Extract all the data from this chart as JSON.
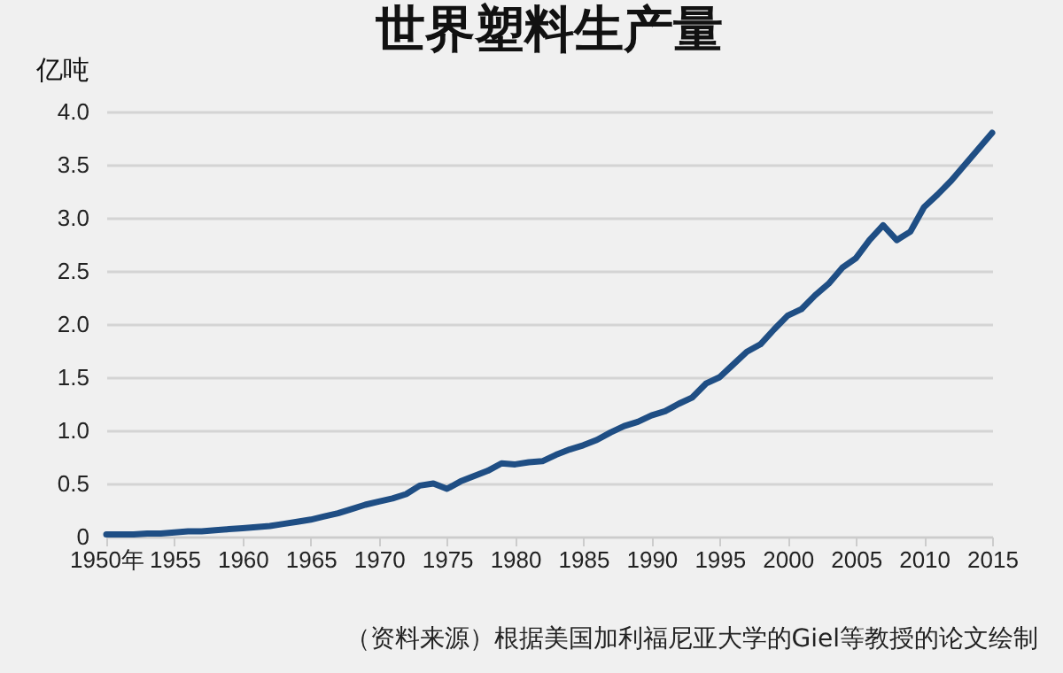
{
  "chart_data": {
    "type": "line",
    "title": "世界塑料生产量",
    "ylabel": "亿吨",
    "annotations": [
      "（资料来源）根据美国加利福尼亚大学的Giel等教授的论文绘制"
    ],
    "x": [
      1950,
      1951,
      1952,
      1953,
      1954,
      1955,
      1956,
      1957,
      1958,
      1959,
      1960,
      1961,
      1962,
      1963,
      1964,
      1965,
      1966,
      1967,
      1968,
      1969,
      1970,
      1971,
      1972,
      1973,
      1974,
      1975,
      1976,
      1977,
      1978,
      1979,
      1980,
      1981,
      1982,
      1983,
      1984,
      1985,
      1986,
      1987,
      1988,
      1989,
      1990,
      1991,
      1992,
      1993,
      1994,
      1995,
      1996,
      1997,
      1998,
      1999,
      2000,
      2001,
      2002,
      2003,
      2004,
      2005,
      2006,
      2007,
      2008,
      2009,
      2010,
      2011,
      2012,
      2013,
      2014,
      2015
    ],
    "series": [
      {
        "color": "#1f4e84",
        "values": [
          0.02,
          0.02,
          0.02,
          0.03,
          0.03,
          0.04,
          0.05,
          0.05,
          0.06,
          0.07,
          0.08,
          0.09,
          0.1,
          0.12,
          0.14,
          0.16,
          0.19,
          0.22,
          0.26,
          0.3,
          0.33,
          0.36,
          0.4,
          0.48,
          0.5,
          0.45,
          0.52,
          0.57,
          0.62,
          0.69,
          0.68,
          0.7,
          0.71,
          0.77,
          0.82,
          0.86,
          0.91,
          0.98,
          1.04,
          1.08,
          1.14,
          1.18,
          1.25,
          1.31,
          1.44,
          1.5,
          1.62,
          1.74,
          1.81,
          1.95,
          2.08,
          2.14,
          2.27,
          2.38,
          2.53,
          2.62,
          2.79,
          2.93,
          2.79,
          2.87,
          3.1,
          3.22,
          3.35,
          3.5,
          3.65,
          3.8
        ]
      }
    ],
    "xlim": [
      1950,
      2015
    ],
    "xticks": [
      {
        "value": 1950,
        "label": "1950年"
      },
      1955,
      1960,
      1965,
      1970,
      1975,
      1980,
      1985,
      1990,
      1995,
      2000,
      2005,
      2010,
      2015
    ],
    "ylim": [
      0,
      4.0
    ],
    "yticks": [
      {
        "value": 0,
        "label": "0"
      },
      {
        "value": 0.5,
        "label": "0.5"
      },
      {
        "value": 1,
        "label": "1.0"
      },
      {
        "value": 1.5,
        "label": "1.5"
      },
      {
        "value": 2,
        "label": "2.0"
      },
      {
        "value": 2.5,
        "label": "2.5"
      },
      {
        "value": 3,
        "label": "3.0"
      },
      {
        "value": 3.5,
        "label": "3.5"
      },
      {
        "value": 4,
        "label": "4.0"
      }
    ],
    "grid": "y",
    "marker": "none",
    "line_style": "solid"
  }
}
